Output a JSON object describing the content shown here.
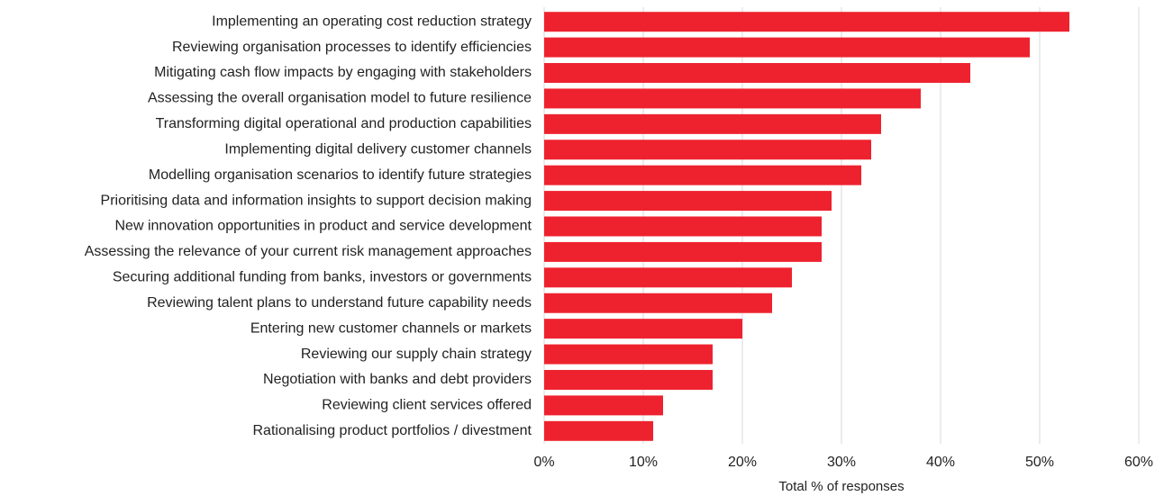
{
  "chart_data": {
    "type": "bar",
    "orientation": "horizontal",
    "x_label": "Total % of responses",
    "categories": [
      "Implementing an operating cost reduction strategy",
      "Reviewing organisation processes to identify efficiencies",
      "Mitigating cash flow impacts by engaging with stakeholders",
      "Assessing the overall organisation model to future resilience",
      "Transforming digital operational and production capabilities",
      "Implementing digital delivery customer channels",
      "Modelling organisation scenarios to identify future strategies",
      "Prioritising data and information insights to support decision making",
      "New innovation opportunities in product and service development",
      "Assessing the relevance of your current risk management approaches",
      "Securing additional funding from banks, investors or governments",
      "Reviewing talent plans to understand future capability needs",
      "Entering new customer channels or markets",
      "Reviewing our supply chain strategy",
      "Negotiation with banks and debt providers",
      "Reviewing client services offered",
      "Rationalising product portfolios / divestment"
    ],
    "values": [
      53,
      49,
      43,
      38,
      34,
      33,
      32,
      29,
      28,
      28,
      25,
      23,
      20,
      17,
      17,
      12,
      11
    ],
    "color": "#ee222e",
    "xlim": [
      0,
      60
    ],
    "xticks": [
      {
        "value": 0,
        "label": "0%"
      },
      {
        "value": 10,
        "label": "10%"
      },
      {
        "value": 20,
        "label": "20%"
      },
      {
        "value": 30,
        "label": "30%"
      },
      {
        "value": 40,
        "label": "40%"
      },
      {
        "value": 50,
        "label": "50%"
      },
      {
        "value": 60,
        "label": "60%"
      }
    ],
    "grid": true
  }
}
